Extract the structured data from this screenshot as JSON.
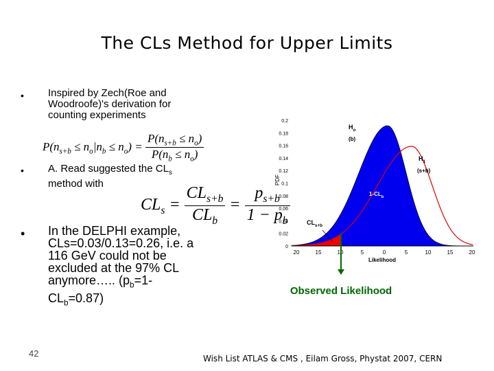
{
  "title": "The  CLs Method for Upper Limits",
  "bullets": [
    {
      "marker": "•",
      "parts": [
        "Inspired by ",
        "Zech(Roe and Woodroofe)'s",
        " derivation for counting experiments"
      ]
    },
    {
      "marker": "•",
      "parts": [
        "A. Read suggested the CL",
        {
          "sub": "s"
        },
        " method with"
      ]
    },
    {
      "marker": "•",
      "parts": [
        "In the DELPHI example, CLs=0.03/0.13=0.26, i.e. a 116 GeV could not be excluded at the 97% CL anymore….. (p",
        {
          "sub": "b"
        },
        "=1-CL",
        {
          "sub": "b"
        },
        "=0.87)"
      ]
    }
  ],
  "formula1": {
    "lhs": [
      "P(n",
      {
        "sub": "s+b"
      },
      " ≤ n",
      {
        "sub": "o"
      },
      "|n",
      {
        "sub": "b"
      },
      " ≤ n",
      {
        "sub": "o"
      },
      ") ="
    ],
    "num": [
      "P(n",
      {
        "sub": "s+b"
      },
      " ≤ n",
      {
        "sub": "o"
      },
      ")"
    ],
    "den": [
      "P(n",
      {
        "sub": "b"
      },
      " ≤ n",
      {
        "sub": "o"
      },
      ")"
    ]
  },
  "formula2": {
    "lhs": [
      "CL",
      {
        "sub": "s"
      },
      " ="
    ],
    "num1": [
      "CL",
      {
        "sub": "s+b"
      }
    ],
    "den1": [
      "CL",
      {
        "sub": "b"
      }
    ],
    "eq": "=",
    "num2": [
      "p",
      {
        "sub": "s+b"
      }
    ],
    "den2": [
      "1 − p",
      {
        "sub": "b"
      }
    ]
  },
  "figure": {
    "y_label": "PDF",
    "x_label": "Likelihood",
    "yticks": [
      "0",
      "0.02",
      "0.04",
      "0.06",
      "0.08",
      "0.1",
      "0.12",
      "0.14",
      "0.16",
      "0.18",
      "0.2"
    ],
    "xticks": [
      "20",
      "15",
      "10",
      "5",
      "0",
      "5",
      "10",
      "15",
      "20"
    ],
    "h0": [
      "H",
      {
        "sub": "o"
      }
    ],
    "h0_note": "(b)",
    "h1": [
      "H",
      {
        "sub": "1"
      }
    ],
    "h1_note": "(s+b)",
    "one_minus_clb": [
      "1-CL",
      {
        "sub": "b"
      }
    ],
    "clsb": [
      "CL",
      {
        "sub": "s+b"
      }
    ],
    "caption": "Observed Likelihood"
  },
  "footer": "Wish List ATLAS & CMS , Eilam Gross, Phystat 2007, CERN",
  "page_number": "42"
}
